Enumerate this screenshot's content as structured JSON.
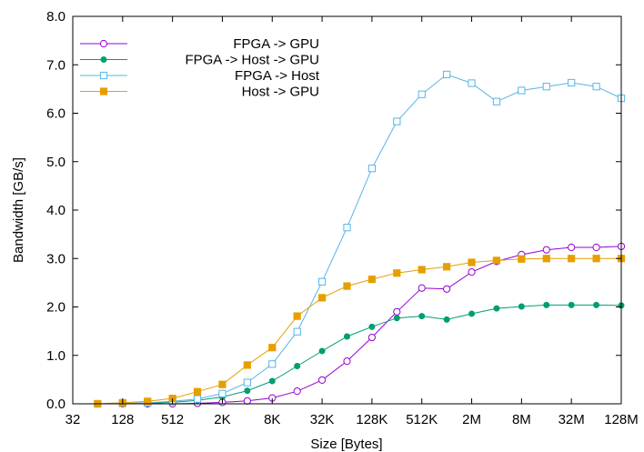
{
  "chart_data": {
    "type": "line",
    "title": "",
    "xlabel": "Size [Bytes]",
    "ylabel": "Bandwidth [GB/s]",
    "x_scale": "log2",
    "x_ticks": [
      "32",
      "128",
      "512",
      "2K",
      "8K",
      "32K",
      "128K",
      "512K",
      "2M",
      "8M",
      "32M",
      "128M"
    ],
    "x": [
      "64",
      "128",
      "256",
      "512",
      "1K",
      "2K",
      "4K",
      "8K",
      "16K",
      "32K",
      "64K",
      "128K",
      "256K",
      "512K",
      "1M",
      "2M",
      "4M",
      "8M",
      "16M",
      "32M",
      "64M",
      "128M"
    ],
    "ylim": [
      0,
      8
    ],
    "y_ticks": [
      "0.0",
      "1.0",
      "2.0",
      "3.0",
      "4.0",
      "5.0",
      "6.0",
      "7.0",
      "8.0"
    ],
    "legend_position": "top-left",
    "series": [
      {
        "name": "FPGA -> GPU",
        "color": "#9400d3",
        "marker": "open-circle",
        "values": [
          0.0,
          0.0,
          0.0,
          0.0,
          0.01,
          0.03,
          0.06,
          0.12,
          0.26,
          0.49,
          0.88,
          1.37,
          1.9,
          2.39,
          2.37,
          2.72,
          2.94,
          3.08,
          3.18,
          3.23,
          3.23,
          3.25
        ]
      },
      {
        "name": "FPGA -> Host -> GPU",
        "color": "#009e73",
        "marker": "filled-circle",
        "values": [
          0.0,
          0.0,
          0.01,
          0.03,
          0.07,
          0.14,
          0.27,
          0.47,
          0.78,
          1.09,
          1.39,
          1.59,
          1.77,
          1.81,
          1.74,
          1.86,
          1.97,
          2.01,
          2.04,
          2.04,
          2.04,
          2.03
        ]
      },
      {
        "name": "FPGA -> Host",
        "color": "#56b4e9",
        "marker": "open-square",
        "values": [
          0.0,
          0.01,
          0.02,
          0.05,
          0.1,
          0.21,
          0.44,
          0.82,
          1.49,
          2.52,
          3.64,
          4.86,
          5.83,
          6.39,
          6.8,
          6.62,
          6.24,
          6.47,
          6.55,
          6.63,
          6.55,
          6.31
        ]
      },
      {
        "name": "Host -> GPU",
        "color": "#e69f00",
        "marker": "filled-square",
        "values": [
          0.0,
          0.02,
          0.05,
          0.11,
          0.25,
          0.4,
          0.8,
          1.16,
          1.81,
          2.19,
          2.43,
          2.57,
          2.7,
          2.77,
          2.83,
          2.92,
          2.96,
          2.99,
          3.0,
          3.0,
          3.0,
          3.0
        ]
      }
    ]
  }
}
